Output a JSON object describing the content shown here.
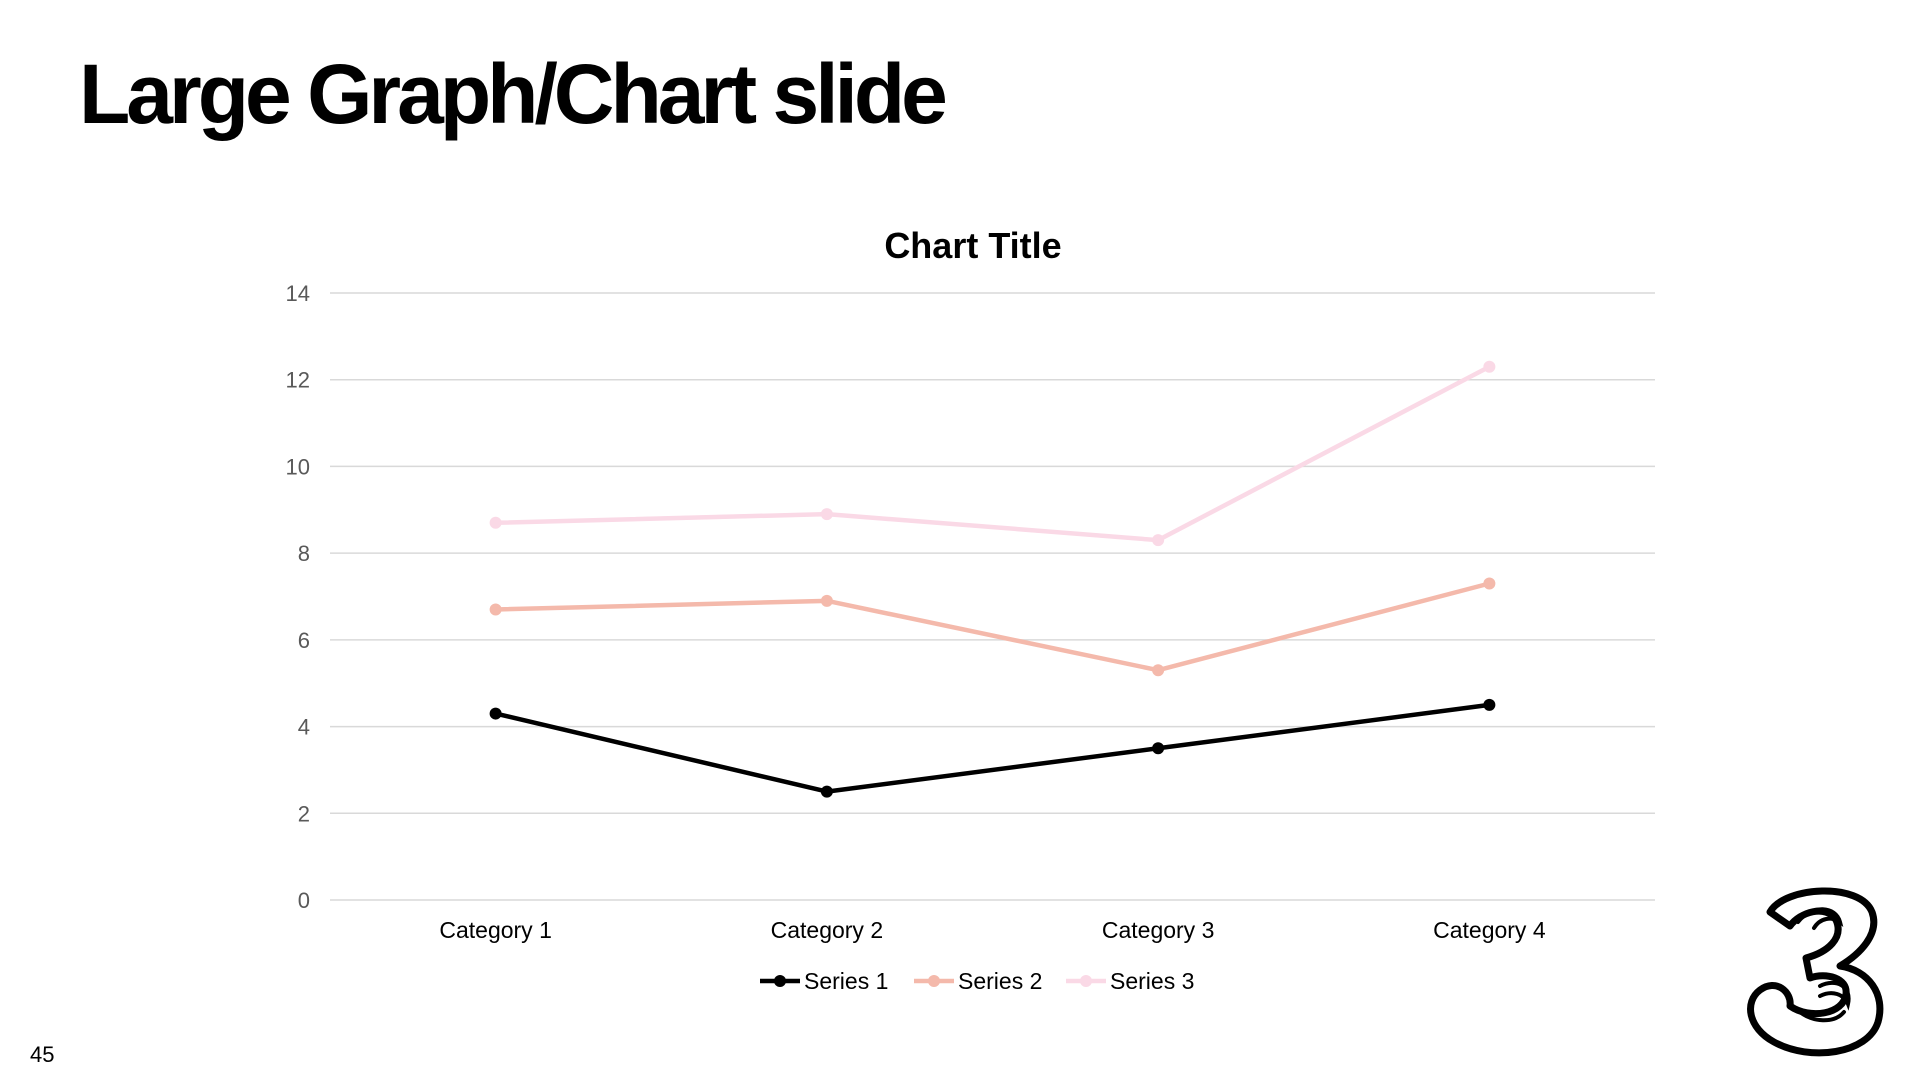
{
  "slide": {
    "title": "Large Graph/Chart slide",
    "page_number": "45"
  },
  "chart_data": {
    "type": "line",
    "title": "Chart Title",
    "xlabel": "",
    "ylabel": "",
    "categories": [
      "Category 1",
      "Category 2",
      "Category 3",
      "Category 4"
    ],
    "ylim": [
      0,
      14
    ],
    "yticks": [
      0,
      2,
      4,
      6,
      8,
      10,
      12,
      14
    ],
    "grid": true,
    "legend_position": "bottom",
    "series": [
      {
        "name": "Series 1",
        "values": [
          4.3,
          2.5,
          3.5,
          4.5
        ],
        "color": "#000000"
      },
      {
        "name": "Series 2",
        "values": [
          6.7,
          6.9,
          5.3,
          7.3
        ],
        "color": "#f4b9ab"
      },
      {
        "name": "Series 3",
        "values": [
          8.7,
          8.9,
          8.3,
          12.3
        ],
        "color": "#fad9e6"
      }
    ]
  },
  "logo": {
    "icon": "three-logo-icon"
  }
}
